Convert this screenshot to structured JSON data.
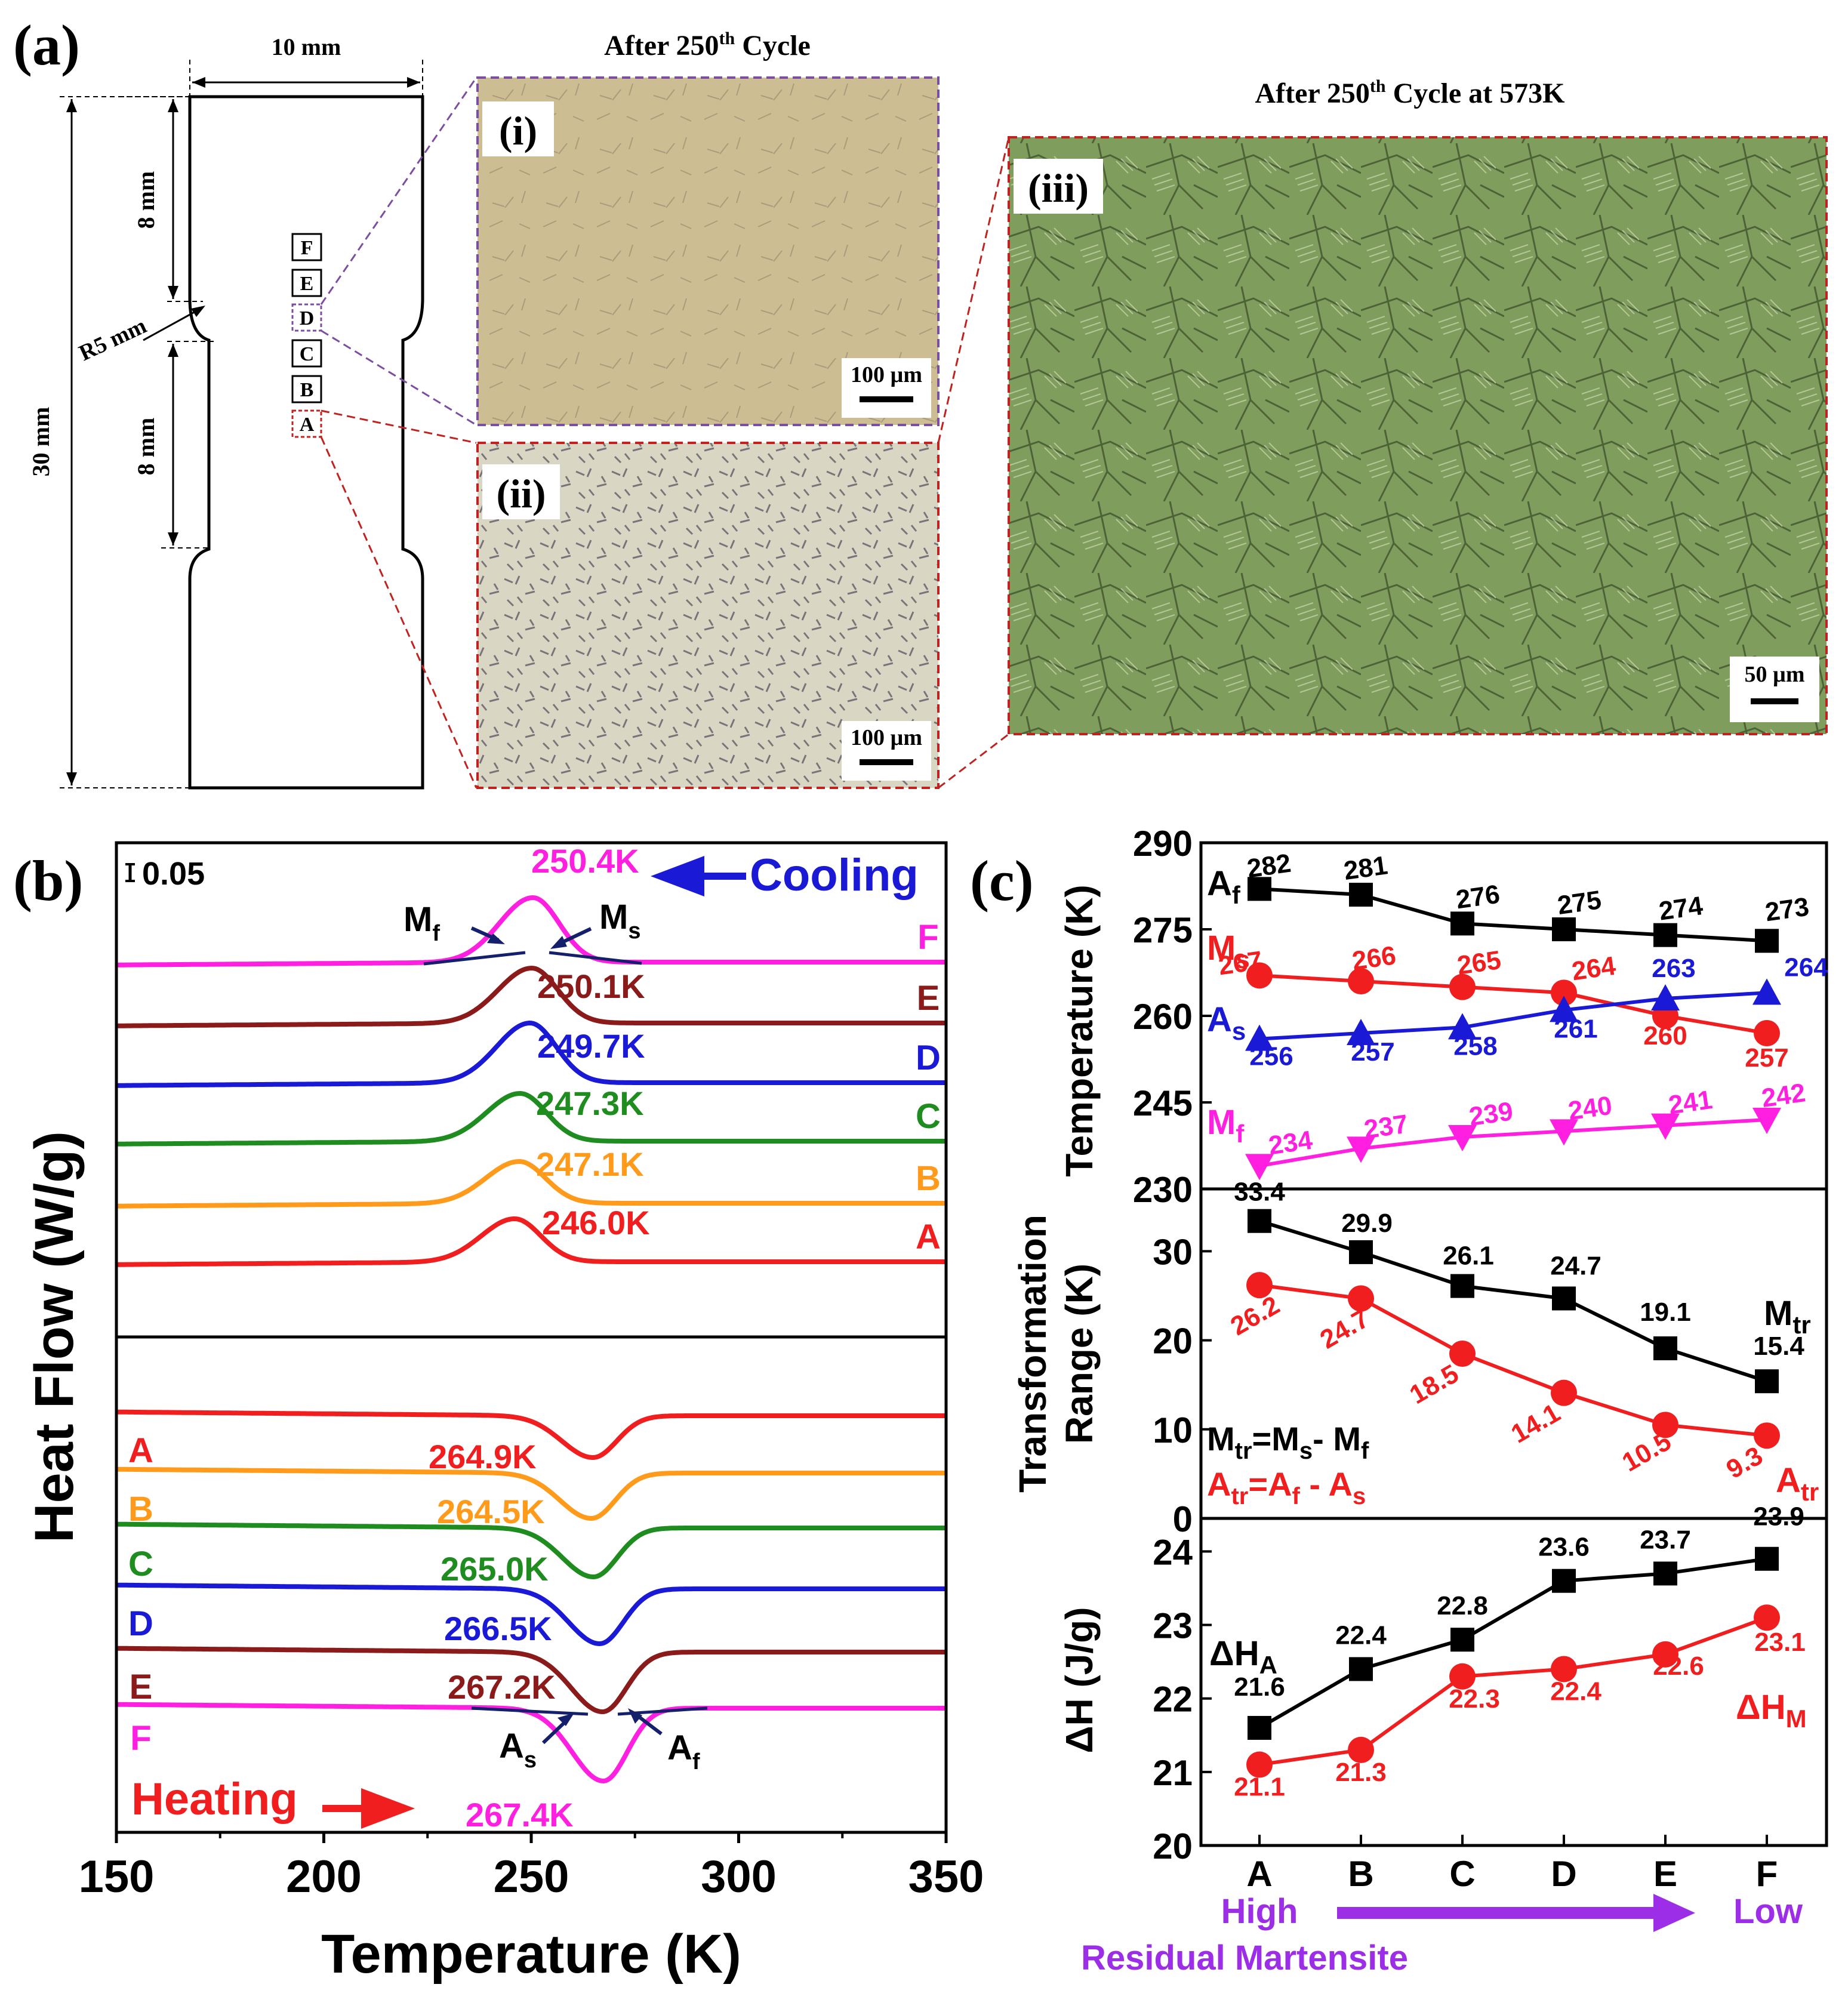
{
  "panel_a": {
    "label": "(a)",
    "dims": {
      "width": "10 mm",
      "top_length": "8 mm",
      "bottom_length": "8 mm",
      "radius": "R5 mm",
      "total": "30 mm"
    },
    "markers": [
      "A",
      "B",
      "C",
      "D",
      "E",
      "F"
    ],
    "micrographs": {
      "title_1": "After 250",
      "sup_1": "th",
      "title_1_tail": " Cycle",
      "title_2": "After 250",
      "sup_2": "th",
      "title_2_tail": " Cycle at 573K",
      "labels": [
        "(i)",
        "(ii)",
        "(iii)"
      ],
      "scale_bars": [
        "100 µm",
        "100 µm",
        "50 µm"
      ],
      "colors": {
        "frame_i": "#7b4ea1",
        "frame_ii": "#c0231f",
        "img_i": "#cdbd93",
        "img_ii": "#d9d7c3",
        "img_iii": "#7f9d5c"
      }
    }
  },
  "chart_data": [
    {
      "type": "line",
      "panel": "(b)",
      "title": "",
      "xlabel": "Temperature (K)",
      "ylabel": "Heat Flow (W/g)",
      "xlim": [
        150,
        350
      ],
      "xticks": [
        150,
        200,
        250,
        300,
        350
      ],
      "scale_label": "0.05",
      "cooling_label": "Cooling",
      "heating_label": "Heating",
      "cooling": [
        {
          "name": "F",
          "peak_label": "250.4K",
          "peak": 250.4,
          "color": "#ff1fe0"
        },
        {
          "name": "E",
          "peak_label": "250.1K",
          "peak": 250.1,
          "color": "#8b1a1a"
        },
        {
          "name": "D",
          "peak_label": "249.7K",
          "peak": 249.7,
          "color": "#1a1ad6"
        },
        {
          "name": "C",
          "peak_label": "247.3K",
          "peak": 247.3,
          "color": "#1e8c1e"
        },
        {
          "name": "B",
          "peak_label": "247.1K",
          "peak": 247.1,
          "color": "#ff9a1a"
        },
        {
          "name": "A",
          "peak_label": "246.0K",
          "peak": 246.0,
          "color": "#f01e1e"
        }
      ],
      "heating": [
        {
          "name": "A",
          "peak_label": "264.9K",
          "peak": 264.9,
          "color": "#f01e1e"
        },
        {
          "name": "B",
          "peak_label": "264.5K",
          "peak": 264.5,
          "color": "#ff9a1a"
        },
        {
          "name": "C",
          "peak_label": "265.0K",
          "peak": 265.0,
          "color": "#1e8c1e"
        },
        {
          "name": "D",
          "peak_label": "266.5K",
          "peak": 266.5,
          "color": "#1a1ad6"
        },
        {
          "name": "E",
          "peak_label": "267.2K",
          "peak": 267.2,
          "color": "#8b1a1a"
        },
        {
          "name": "F",
          "peak_label": "267.4K",
          "peak": 267.4,
          "color": "#ff1fe0"
        }
      ],
      "annotations": {
        "mf": "M",
        "mf_sub": "f",
        "ms": "M",
        "ms_sub": "s",
        "as": "A",
        "as_sub": "s",
        "af": "A",
        "af_sub": "f"
      }
    },
    {
      "type": "line",
      "panel": "(c)",
      "categories": [
        "A",
        "B",
        "C",
        "D",
        "E",
        "F"
      ],
      "subplots": [
        {
          "ylabel": "Temperature (K)",
          "ylim": [
            230,
            290
          ],
          "yticks": [
            230,
            245,
            260,
            275,
            290
          ],
          "series": [
            {
              "name": "Af",
              "label": "A",
              "sub": "f",
              "marker": "square",
              "color": "#000000",
              "values": [
                282,
                281,
                276,
                275,
                274,
                273
              ]
            },
            {
              "name": "Ms",
              "label": "M",
              "sub": "s",
              "marker": "circle",
              "color": "#f01e1e",
              "values": [
                267,
                266,
                265,
                264,
                260,
                257
              ]
            },
            {
              "name": "As",
              "label": "A",
              "sub": "s",
              "marker": "triangle-up",
              "color": "#1a1ad6",
              "values": [
                256,
                257,
                258,
                261,
                263,
                264
              ]
            },
            {
              "name": "Mf",
              "label": "M",
              "sub": "f",
              "marker": "triangle-down",
              "color": "#ff1fe0",
              "values": [
                234,
                237,
                239,
                240,
                241,
                242
              ]
            }
          ]
        },
        {
          "ylabel_1": "Transformation",
          "ylabel_2": "Range (K)",
          "ylim": [
            0,
            37
          ],
          "yticks": [
            0,
            10,
            20,
            30
          ],
          "series": [
            {
              "name": "Mtr",
              "label": "M",
              "sub": "tr",
              "marker": "square",
              "color": "#000000",
              "values": [
                33.4,
                29.9,
                26.1,
                24.7,
                19.1,
                15.4
              ]
            },
            {
              "name": "Atr",
              "label": "A",
              "sub": "tr",
              "marker": "circle",
              "color": "#f01e1e",
              "values": [
                26.2,
                24.7,
                18.5,
                14.1,
                10.5,
                9.3
              ]
            }
          ],
          "eq1_a": "M",
          "eq1_a_sub": "tr",
          "eq1_b": "=M",
          "eq1_b_sub": "s",
          "eq1_c": "- M",
          "eq1_c_sub": "f",
          "eq2_a": "A",
          "eq2_a_sub": "tr",
          "eq2_b": "=A",
          "eq2_b_sub": "f",
          "eq2_c": " - A",
          "eq2_c_sub": "s"
        },
        {
          "ylabel": "ΔH (J/g)",
          "ylim": [
            20,
            24.45
          ],
          "yticks": [
            20,
            21,
            22,
            23,
            24
          ],
          "series": [
            {
              "name": "dHA",
              "label": "ΔH",
              "sub": "A",
              "marker": "square",
              "color": "#000000",
              "values": [
                21.6,
                22.4,
                22.8,
                23.6,
                23.7,
                23.9
              ]
            },
            {
              "name": "dHM",
              "label": "ΔH",
              "sub": "M",
              "marker": "circle",
              "color": "#f01e1e",
              "values": [
                21.1,
                21.3,
                22.3,
                22.4,
                22.6,
                23.1
              ]
            }
          ]
        }
      ],
      "bottom": {
        "high": "High",
        "low": "Low",
        "caption": "Residual Martensite",
        "color": "#9b2ee6"
      }
    }
  ]
}
